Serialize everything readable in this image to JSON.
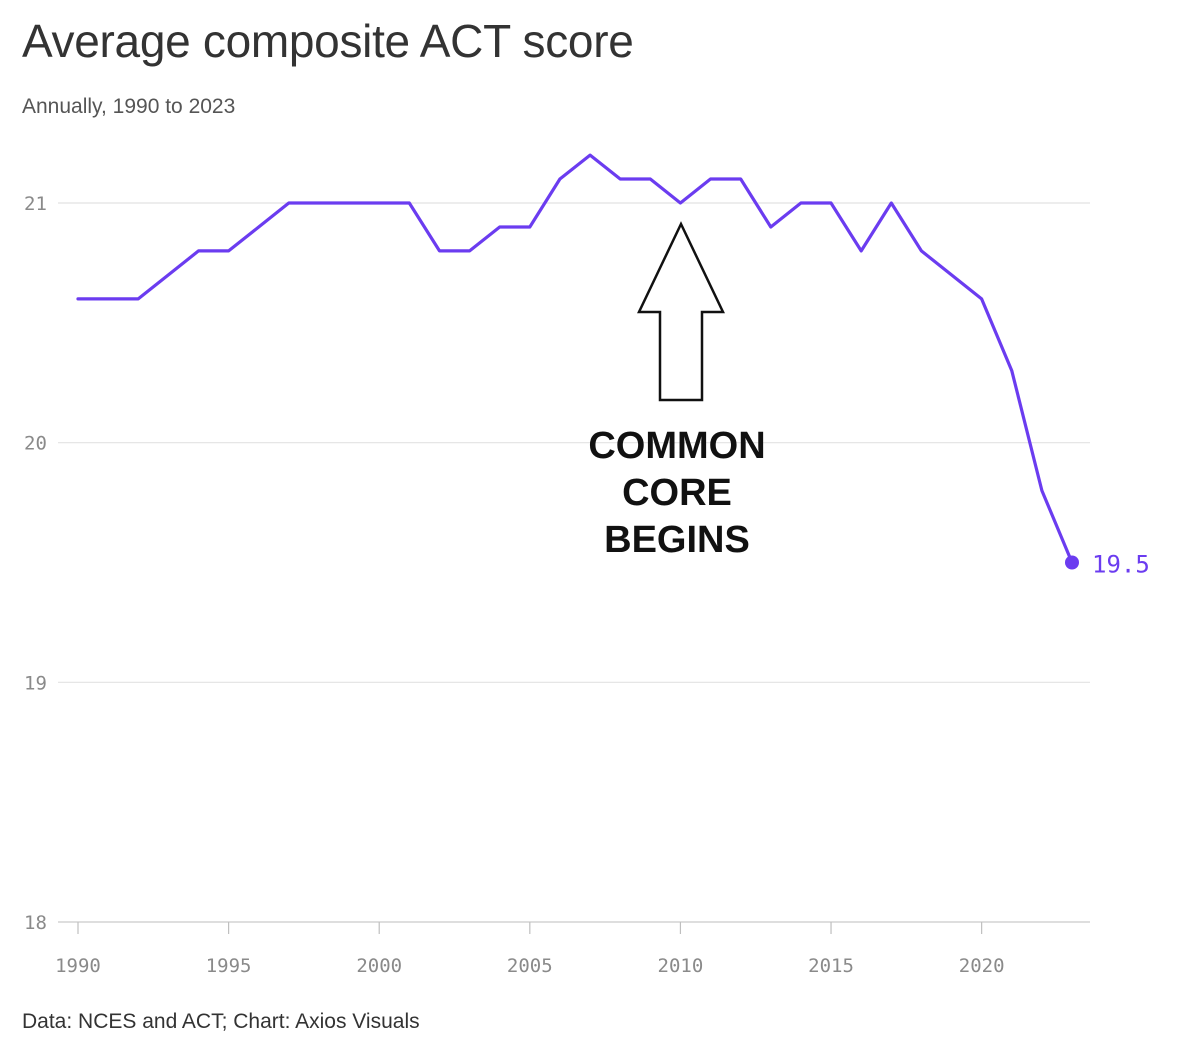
{
  "chart_data": {
    "type": "line",
    "title": "Average composite ACT score",
    "subtitle": "Annually, 1990 to 2023",
    "source": "Data: NCES and ACT; Chart: Axios Visuals",
    "xlabel": "",
    "ylabel": "",
    "xlim": [
      1990,
      2023
    ],
    "ylim": [
      18,
      21.3
    ],
    "x_ticks": [
      1990,
      1995,
      2000,
      2005,
      2010,
      2015,
      2020
    ],
    "y_ticks": [
      18,
      19,
      20,
      21
    ],
    "grid": true,
    "series": [
      {
        "name": "Average composite ACT score",
        "color": "#6b3cf0",
        "x": [
          1990,
          1991,
          1992,
          1993,
          1994,
          1995,
          1996,
          1997,
          1998,
          1999,
          2000,
          2001,
          2002,
          2003,
          2004,
          2005,
          2006,
          2007,
          2008,
          2009,
          2010,
          2011,
          2012,
          2013,
          2014,
          2015,
          2016,
          2017,
          2018,
          2019,
          2020,
          2021,
          2022,
          2023
        ],
        "values": [
          20.6,
          20.6,
          20.6,
          20.7,
          20.8,
          20.8,
          20.9,
          21.0,
          21.0,
          21.0,
          21.0,
          21.0,
          20.8,
          20.8,
          20.9,
          20.9,
          21.1,
          21.2,
          21.1,
          21.1,
          21.0,
          21.1,
          21.1,
          20.9,
          21.0,
          21.0,
          20.8,
          21.0,
          20.8,
          20.7,
          20.6,
          20.3,
          19.8,
          19.5
        ]
      }
    ],
    "end_label": "19.5",
    "annotation": {
      "lines": [
        "COMMON",
        "CORE",
        "BEGINS"
      ],
      "year": 2010
    }
  }
}
